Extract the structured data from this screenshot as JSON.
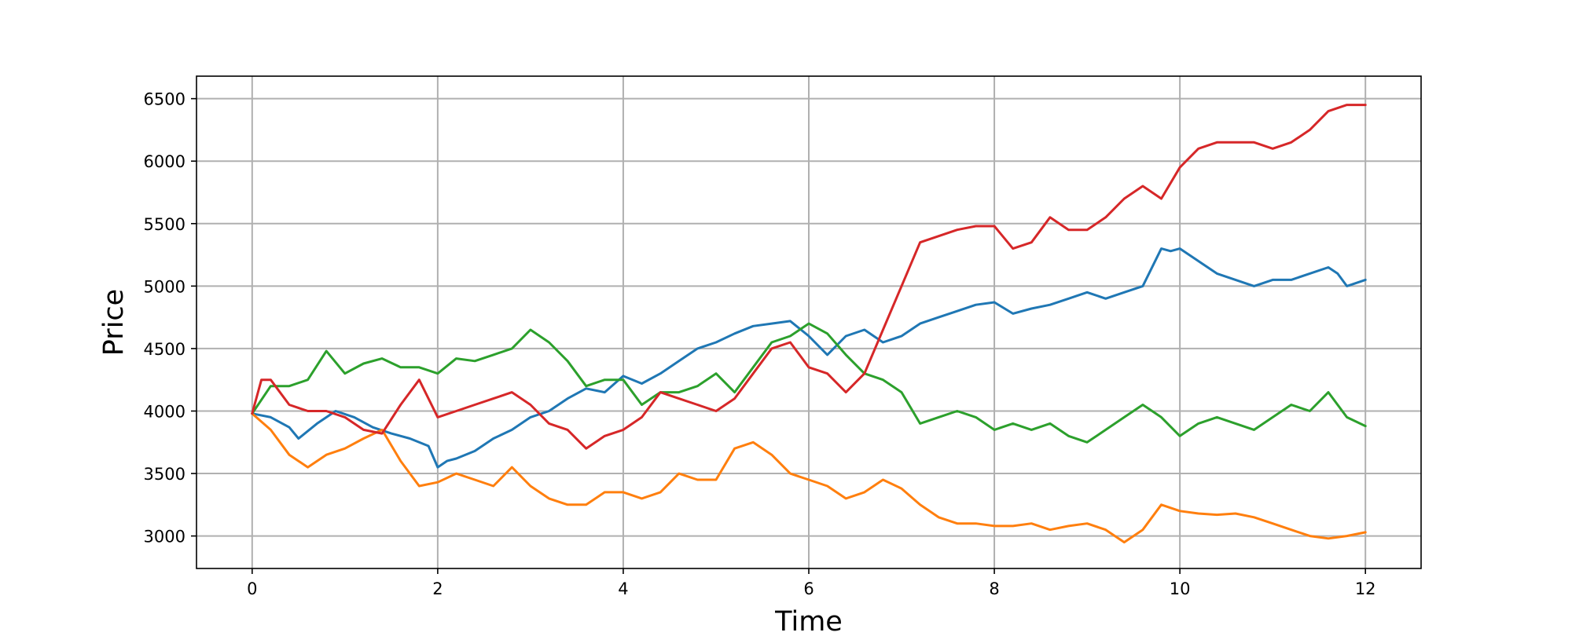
{
  "chart_data": {
    "type": "line",
    "title": "",
    "xlabel": "Time",
    "ylabel": "Price",
    "xlim": [
      -0.6,
      12.6
    ],
    "ylim": [
      2740,
      6680
    ],
    "xticks": [
      0,
      2,
      4,
      6,
      8,
      10,
      12
    ],
    "yticks": [
      3000,
      3500,
      4000,
      4500,
      5000,
      5500,
      6000,
      6500
    ],
    "grid": true,
    "series": [
      {
        "color": "#1f77b4",
        "x": [
          0,
          0.2,
          0.4,
          0.5,
          0.7,
          0.9,
          1.1,
          1.3,
          1.5,
          1.7,
          1.9,
          2.0,
          2.1,
          2.2,
          2.4,
          2.6,
          2.8,
          3.0,
          3.2,
          3.4,
          3.6,
          3.8,
          4.0,
          4.2,
          4.4,
          4.6,
          4.8,
          5.0,
          5.2,
          5.4,
          5.6,
          5.8,
          6.0,
          6.2,
          6.4,
          6.6,
          6.8,
          7.0,
          7.2,
          7.4,
          7.6,
          7.8,
          8.0,
          8.2,
          8.4,
          8.6,
          8.8,
          9.0,
          9.2,
          9.4,
          9.6,
          9.8,
          9.9,
          10.0,
          10.2,
          10.4,
          10.6,
          10.8,
          11.0,
          11.2,
          11.4,
          11.6,
          11.7,
          11.8,
          12.0
        ],
        "y": [
          3980,
          3950,
          3870,
          3780,
          3900,
          4000,
          3950,
          3870,
          3820,
          3780,
          3720,
          3550,
          3600,
          3620,
          3680,
          3780,
          3850,
          3950,
          4000,
          4100,
          4180,
          4150,
          4280,
          4220,
          4300,
          4400,
          4500,
          4550,
          4620,
          4680,
          4700,
          4720,
          4600,
          4450,
          4600,
          4650,
          4550,
          4600,
          4700,
          4750,
          4800,
          4850,
          4870,
          4780,
          4820,
          4850,
          4900,
          4950,
          4900,
          4950,
          5000,
          5300,
          5280,
          5300,
          5200,
          5100,
          5050,
          5000,
          5050,
          5050,
          5100,
          5150,
          5100,
          5000,
          5050
        ]
      },
      {
        "color": "#ff7f0e",
        "x": [
          0,
          0.2,
          0.4,
          0.6,
          0.8,
          1.0,
          1.2,
          1.4,
          1.6,
          1.8,
          2.0,
          2.2,
          2.4,
          2.6,
          2.8,
          3.0,
          3.2,
          3.4,
          3.6,
          3.8,
          4.0,
          4.2,
          4.4,
          4.6,
          4.8,
          5.0,
          5.2,
          5.4,
          5.6,
          5.8,
          6.0,
          6.2,
          6.4,
          6.6,
          6.8,
          7.0,
          7.2,
          7.4,
          7.6,
          7.8,
          8.0,
          8.2,
          8.4,
          8.6,
          8.8,
          9.0,
          9.2,
          9.4,
          9.6,
          9.8,
          10.0,
          10.2,
          10.4,
          10.6,
          10.8,
          11.0,
          11.2,
          11.4,
          11.6,
          11.8,
          12.0
        ],
        "y": [
          3980,
          3850,
          3650,
          3550,
          3650,
          3700,
          3780,
          3850,
          3600,
          3400,
          3430,
          3500,
          3450,
          3400,
          3550,
          3400,
          3300,
          3250,
          3250,
          3350,
          3350,
          3300,
          3350,
          3500,
          3450,
          3450,
          3700,
          3750,
          3650,
          3500,
          3450,
          3400,
          3300,
          3350,
          3450,
          3380,
          3250,
          3150,
          3100,
          3100,
          3080,
          3080,
          3100,
          3050,
          3080,
          3100,
          3050,
          2950,
          3050,
          3250,
          3200,
          3180,
          3170,
          3180,
          3150,
          3100,
          3050,
          3000,
          2980,
          3000,
          3030
        ]
      },
      {
        "color": "#2ca02c",
        "x": [
          0,
          0.2,
          0.4,
          0.6,
          0.8,
          1.0,
          1.2,
          1.4,
          1.6,
          1.8,
          2.0,
          2.2,
          2.4,
          2.6,
          2.8,
          3.0,
          3.2,
          3.4,
          3.6,
          3.8,
          4.0,
          4.2,
          4.4,
          4.6,
          4.8,
          5.0,
          5.2,
          5.4,
          5.6,
          5.8,
          6.0,
          6.2,
          6.4,
          6.6,
          6.8,
          7.0,
          7.2,
          7.4,
          7.6,
          7.8,
          8.0,
          8.2,
          8.4,
          8.6,
          8.8,
          9.0,
          9.2,
          9.4,
          9.6,
          9.8,
          10.0,
          10.2,
          10.4,
          10.6,
          10.8,
          11.0,
          11.2,
          11.4,
          11.6,
          11.8,
          12.0
        ],
        "y": [
          3980,
          4200,
          4200,
          4250,
          4480,
          4300,
          4380,
          4420,
          4350,
          4350,
          4300,
          4420,
          4400,
          4450,
          4500,
          4650,
          4550,
          4400,
          4200,
          4250,
          4250,
          4050,
          4150,
          4150,
          4200,
          4300,
          4150,
          4350,
          4550,
          4600,
          4700,
          4620,
          4450,
          4300,
          4250,
          4150,
          3900,
          3950,
          4000,
          3950,
          3850,
          3900,
          3850,
          3900,
          3800,
          3750,
          3850,
          3950,
          4050,
          3950,
          3800,
          3900,
          3950,
          3900,
          3850,
          3950,
          4050,
          4000,
          4150,
          3950,
          3880
        ]
      },
      {
        "color": "#d62728",
        "x": [
          0,
          0.1,
          0.2,
          0.4,
          0.6,
          0.8,
          1.0,
          1.2,
          1.4,
          1.6,
          1.8,
          2.0,
          2.2,
          2.4,
          2.6,
          2.8,
          3.0,
          3.2,
          3.4,
          3.6,
          3.8,
          4.0,
          4.2,
          4.4,
          4.6,
          4.8,
          5.0,
          5.2,
          5.4,
          5.6,
          5.8,
          6.0,
          6.2,
          6.4,
          6.6,
          6.8,
          7.0,
          7.2,
          7.4,
          7.6,
          7.8,
          8.0,
          8.2,
          8.4,
          8.6,
          8.8,
          9.0,
          9.2,
          9.4,
          9.6,
          9.8,
          10.0,
          10.2,
          10.4,
          10.6,
          10.8,
          11.0,
          11.2,
          11.4,
          11.6,
          11.8,
          12.0
        ],
        "y": [
          3980,
          4250,
          4250,
          4050,
          4000,
          4000,
          3950,
          3850,
          3820,
          4050,
          4250,
          3950,
          4000,
          4050,
          4100,
          4150,
          4050,
          3900,
          3850,
          3700,
          3800,
          3850,
          3950,
          4150,
          4100,
          4050,
          4000,
          4100,
          4300,
          4500,
          4550,
          4350,
          4300,
          4150,
          4300,
          4650,
          5000,
          5350,
          5400,
          5450,
          5480,
          5480,
          5300,
          5350,
          5550,
          5450,
          5450,
          5550,
          5700,
          5800,
          5700,
          5950,
          6100,
          6150,
          6150,
          6150,
          6100,
          6150,
          6250,
          6400,
          6450,
          6450
        ]
      }
    ]
  }
}
